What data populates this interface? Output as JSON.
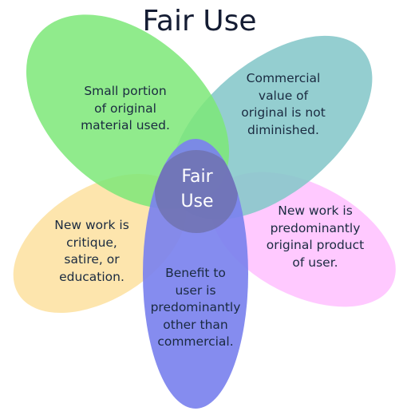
{
  "title": "Fair Use",
  "center": {
    "line1": "Fair",
    "line2": "Use"
  },
  "petals": [
    {
      "id": "small-portion",
      "color": "#7de878",
      "lines": [
        "Small portion",
        "of original",
        "material used."
      ]
    },
    {
      "id": "commercial-value",
      "color": "#85c7c9",
      "lines": [
        "Commercial",
        "value of",
        "original is not",
        "diminished."
      ]
    },
    {
      "id": "new-original",
      "color": "#ffc4ff",
      "lines": [
        "New work is",
        "predominantly",
        "original product",
        "of user."
      ]
    },
    {
      "id": "benefit",
      "color": "#7b82ee",
      "lines": [
        "Benefit to",
        "user is",
        "predominantly",
        "other than",
        "commercial."
      ]
    },
    {
      "id": "critique",
      "color": "#fde3a6",
      "lines": [
        "New work is",
        "critique,",
        "satire, or",
        "education."
      ]
    }
  ],
  "center_color": "#6e6fa8"
}
